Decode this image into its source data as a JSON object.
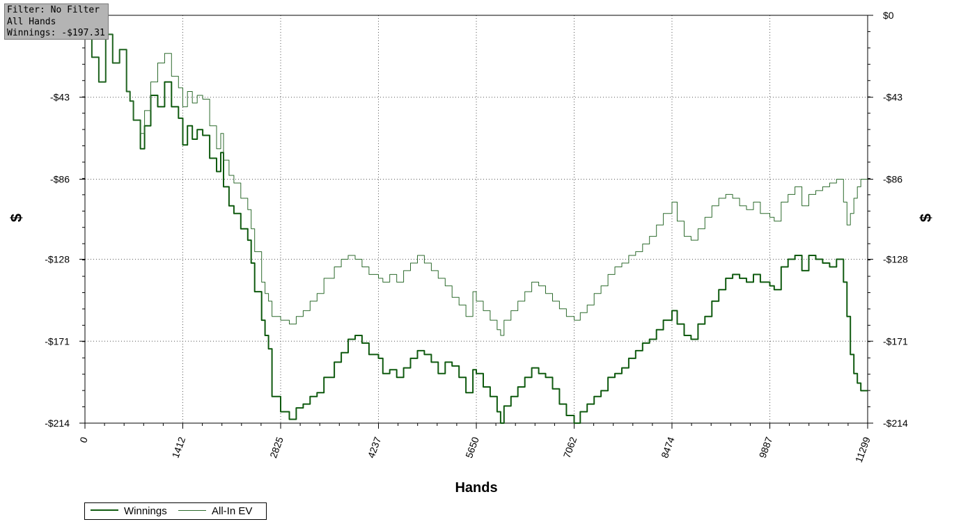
{
  "info": {
    "filter": "Filter: No Filter",
    "hands": "All Hands",
    "winnings": "Winnings: -$197.31"
  },
  "chart_data": {
    "type": "line",
    "xlabel": "Hands",
    "ylabel": "$",
    "xlim": [
      0,
      11299
    ],
    "ylim": [
      -214,
      0
    ],
    "x_ticks": [
      "0",
      "1412",
      "2825",
      "4237",
      "5650",
      "7062",
      "8474",
      "9887",
      "11299"
    ],
    "y_ticks": [
      "$0",
      "-$43",
      "-$86",
      "-$128",
      "-$171",
      "-$214"
    ],
    "grid": true,
    "legend_position": "bottom-left",
    "colors": {
      "winnings": "#0f5a0f",
      "allin_ev": "#2c6a2c"
    },
    "series": [
      {
        "name": "Winnings",
        "x": [
          0,
          100,
          200,
          300,
          400,
          500,
          600,
          650,
          700,
          800,
          860,
          950,
          1050,
          1150,
          1250,
          1350,
          1412,
          1480,
          1550,
          1620,
          1700,
          1800,
          1900,
          1960,
          2000,
          2080,
          2150,
          2250,
          2350,
          2400,
          2450,
          2550,
          2600,
          2650,
          2700,
          2825,
          2950,
          3050,
          3150,
          3250,
          3350,
          3450,
          3600,
          3700,
          3800,
          3900,
          4000,
          4100,
          4237,
          4300,
          4400,
          4500,
          4600,
          4700,
          4800,
          4900,
          5000,
          5100,
          5200,
          5300,
          5400,
          5500,
          5600,
          5650,
          5750,
          5850,
          5950,
          6000,
          6050,
          6150,
          6250,
          6350,
          6450,
          6550,
          6650,
          6750,
          6850,
          6950,
          7062,
          7150,
          7250,
          7350,
          7450,
          7550,
          7650,
          7750,
          7850,
          7950,
          8050,
          8150,
          8250,
          8350,
          8474,
          8550,
          8650,
          8750,
          8850,
          8950,
          9050,
          9150,
          9250,
          9350,
          9450,
          9550,
          9650,
          9750,
          9887,
          9950,
          10050,
          10150,
          10250,
          10350,
          10450,
          10550,
          10650,
          10750,
          10850,
          10950,
          11000,
          11050,
          11100,
          11150,
          11200,
          11250,
          11299
        ],
        "y": [
          -5,
          -22,
          -35,
          -10,
          -25,
          -18,
          -40,
          -45,
          -55,
          -70,
          -58,
          -42,
          -48,
          -35,
          -48,
          -54,
          -68,
          -58,
          -65,
          -60,
          -63,
          -75,
          -82,
          -72,
          -90,
          -100,
          -104,
          -112,
          -118,
          -130,
          -145,
          -160,
          -168,
          -175,
          -200,
          -208,
          -212,
          -206,
          -204,
          -200,
          -198,
          -190,
          -182,
          -177,
          -170,
          -168,
          -172,
          -178,
          -180,
          -188,
          -186,
          -190,
          -185,
          -180,
          -176,
          -178,
          -182,
          -188,
          -182,
          -184,
          -190,
          -198,
          -186,
          -188,
          -195,
          -200,
          -208,
          -214,
          -205,
          -200,
          -195,
          -190,
          -185,
          -188,
          -190,
          -196,
          -204,
          -210,
          -214,
          -208,
          -204,
          -200,
          -197,
          -190,
          -188,
          -185,
          -180,
          -176,
          -172,
          -170,
          -165,
          -160,
          -155,
          -162,
          -168,
          -170,
          -162,
          -158,
          -150,
          -144,
          -138,
          -136,
          -138,
          -140,
          -136,
          -140,
          -142,
          -144,
          -132,
          -128,
          -126,
          -134,
          -126,
          -128,
          -130,
          -132,
          -128,
          -140,
          -158,
          -178,
          -188,
          -193,
          -197,
          -197,
          -197
        ]
      },
      {
        "name": "All-In EV",
        "x": [
          0,
          100,
          200,
          300,
          400,
          500,
          600,
          650,
          700,
          800,
          860,
          950,
          1050,
          1150,
          1250,
          1350,
          1412,
          1480,
          1550,
          1620,
          1700,
          1800,
          1900,
          1960,
          2000,
          2080,
          2150,
          2250,
          2350,
          2400,
          2450,
          2550,
          2600,
          2650,
          2700,
          2825,
          2950,
          3050,
          3150,
          3250,
          3350,
          3450,
          3600,
          3700,
          3800,
          3900,
          4000,
          4100,
          4237,
          4300,
          4400,
          4500,
          4600,
          4700,
          4800,
          4900,
          5000,
          5100,
          5200,
          5300,
          5400,
          5500,
          5600,
          5650,
          5750,
          5850,
          5950,
          6000,
          6050,
          6150,
          6250,
          6350,
          6450,
          6550,
          6650,
          6750,
          6850,
          6950,
          7062,
          7150,
          7250,
          7350,
          7450,
          7550,
          7650,
          7750,
          7850,
          7950,
          8050,
          8150,
          8250,
          8350,
          8474,
          8550,
          8650,
          8750,
          8850,
          8950,
          9050,
          9150,
          9250,
          9350,
          9450,
          9550,
          9650,
          9750,
          9887,
          9950,
          10050,
          10150,
          10250,
          10350,
          10450,
          10550,
          10650,
          10750,
          10850,
          10950,
          11000,
          11050,
          11100,
          11150,
          11200,
          11250,
          11299
        ],
        "y": [
          -5,
          -22,
          -35,
          -10,
          -25,
          -18,
          -40,
          -45,
          -55,
          -62,
          -50,
          -35,
          -25,
          -20,
          -32,
          -38,
          -48,
          -40,
          -46,
          -42,
          -44,
          -58,
          -70,
          -62,
          -76,
          -84,
          -88,
          -96,
          -102,
          -112,
          -124,
          -140,
          -146,
          -150,
          -158,
          -160,
          -162,
          -158,
          -155,
          -150,
          -146,
          -138,
          -132,
          -128,
          -126,
          -128,
          -132,
          -136,
          -138,
          -140,
          -136,
          -140,
          -134,
          -130,
          -126,
          -130,
          -134,
          -138,
          -142,
          -148,
          -152,
          -158,
          -145,
          -150,
          -155,
          -160,
          -165,
          -168,
          -160,
          -155,
          -150,
          -145,
          -140,
          -142,
          -146,
          -150,
          -154,
          -158,
          -160,
          -156,
          -152,
          -146,
          -142,
          -136,
          -132,
          -130,
          -126,
          -124,
          -120,
          -116,
          -110,
          -104,
          -98,
          -108,
          -116,
          -118,
          -112,
          -106,
          -100,
          -96,
          -94,
          -96,
          -100,
          -102,
          -98,
          -104,
          -106,
          -108,
          -98,
          -94,
          -90,
          -100,
          -94,
          -92,
          -90,
          -88,
          -86,
          -98,
          -110,
          -104,
          -96,
          -90,
          -86,
          -86,
          -86
        ]
      }
    ]
  }
}
